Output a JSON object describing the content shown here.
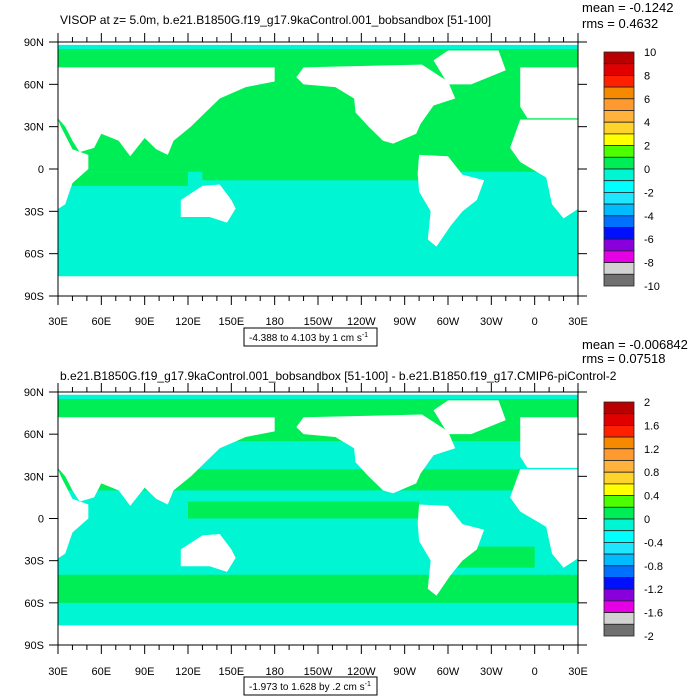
{
  "panels": [
    {
      "title": "VISOP at z=   5.0m, b.e21.B1850G.f19_g17.9kaControl.001_bobsandbox [51-100]",
      "mean": "mean = -0.1242",
      "rms": "rms = 0.4632",
      "contour_info": "-4.388 to 4.103 by 1 cm s",
      "contour_info_sup": "-1",
      "colorbar_labels": [
        "10",
        "8",
        "6",
        "4",
        "2",
        "0",
        "-2",
        "-4",
        "-6",
        "-8",
        "-10"
      ],
      "field_style": "control"
    },
    {
      "title": "b.e21.B1850G.f19_g17.9kaControl.001_bobsandbox [51-100] - b.e21.B1850.f19_g17.CMIP6-piControl-2",
      "mean": "mean = -0.006842",
      "rms": "rms = 0.07518",
      "contour_info": "-1.973 to 1.628 by .2 cm s",
      "contour_info_sup": "-1",
      "colorbar_labels": [
        "2",
        "1.6",
        "1.2",
        "0.8",
        "0.4",
        "0",
        "-0.4",
        "-0.8",
        "-1.2",
        "-1.6",
        "-2"
      ],
      "field_style": "difference"
    }
  ],
  "axes": {
    "lon_labels": [
      "30E",
      "60E",
      "90E",
      "120E",
      "150E",
      "180",
      "150W",
      "120W",
      "90W",
      "60W",
      "30W",
      "0",
      "30E"
    ],
    "lat_labels": [
      "90N",
      "60N",
      "30N",
      "0",
      "30S",
      "60S",
      "90S"
    ]
  },
  "colorbar_colors": [
    "#b80000",
    "#e00000",
    "#ff2000",
    "#f58a00",
    "#ff9a30",
    "#ffb23c",
    "#ffd42a",
    "#ffff00",
    "#4cff00",
    "#00ee55",
    "#00f5d2",
    "#00ffff",
    "#1ee6ff",
    "#00bcff",
    "#0070ff",
    "#0010ff",
    "#8a00dc",
    "#e600e6",
    "#d2d2d2",
    "#707070"
  ],
  "field_colors": {
    "ocean_neg": "#00f5d2",
    "ocean_pos": "#00ee55"
  }
}
